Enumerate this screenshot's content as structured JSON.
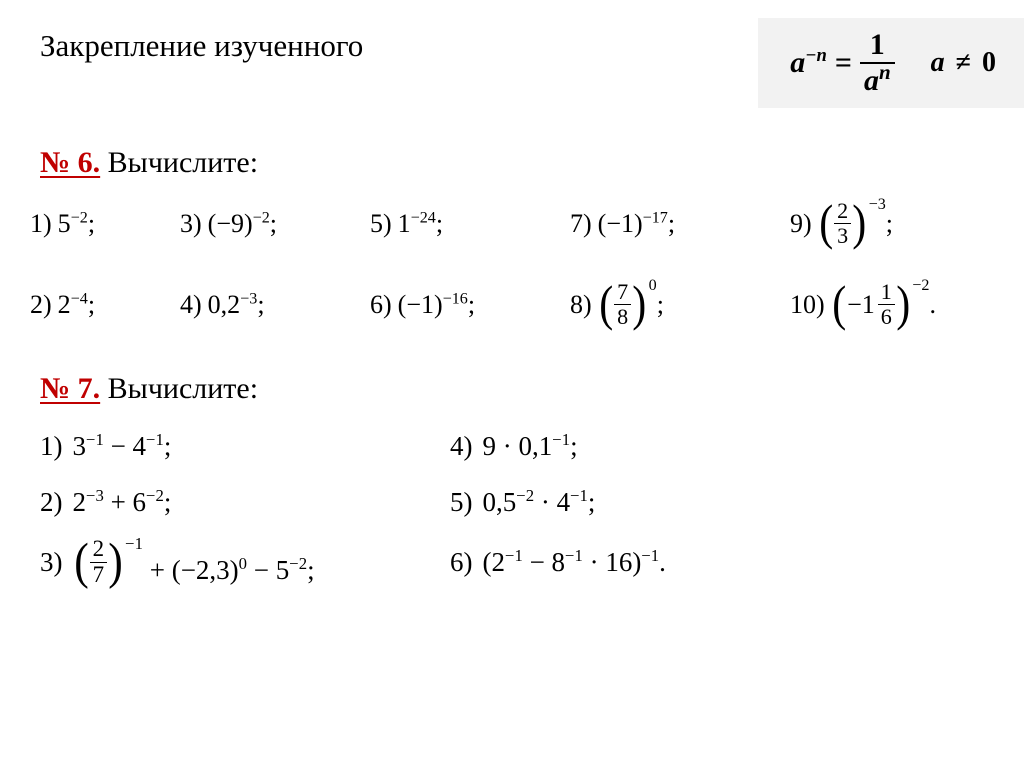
{
  "colors": {
    "background": "#ffffff",
    "text": "#000000",
    "accent_red": "#c00000",
    "formula_box_bg": "#f2f2f2"
  },
  "fonts": {
    "body": "Times New Roman / Georgia serif",
    "title_size_pt": 24,
    "formula_size_pt": 22,
    "task_heading_size_pt": 22,
    "exercise_size_pt": 20
  },
  "title": "Закрепление изученного",
  "formula": {
    "lhs_base": "a",
    "lhs_exp": "−n",
    "eq": "=",
    "rhs_num": "1",
    "rhs_den_base": "a",
    "rhs_den_exp": "n",
    "side_base": "a",
    "side_rel": "≠",
    "side_val": "0"
  },
  "task6": {
    "num": "№ 6.",
    "title": "Вычислите:",
    "items": {
      "r1c1": {
        "lbl": "1)",
        "expr": "5^{-2};",
        "base": "5",
        "exp": "−2",
        "tail": ";"
      },
      "r1c2": {
        "lbl": "3)",
        "expr": "(-9)^{-2};",
        "base": "(−9)",
        "exp": "−2",
        "tail": ";"
      },
      "r1c3": {
        "lbl": "5)",
        "expr": "1^{-24};",
        "base": "1",
        "exp": "−24",
        "tail": ";"
      },
      "r1c4": {
        "lbl": "7)",
        "expr": "(-1)^{-17};",
        "base": "(−1)",
        "exp": "−17",
        "tail": ";"
      },
      "r1c5": {
        "lbl": "9)",
        "expr": "(2/3)^{-3};",
        "type": "bigfrac",
        "num": "2",
        "den": "3",
        "exp": "−3",
        "tail": ";"
      },
      "r2c1": {
        "lbl": "2)",
        "expr": "2^{-4};",
        "base": "2",
        "exp": "−4",
        "tail": ";"
      },
      "r2c2": {
        "lbl": "4)",
        "expr": "0,2^{-3};",
        "base": "0,2",
        "exp": "−3",
        "tail": ";"
      },
      "r2c3": {
        "lbl": "6)",
        "expr": "(-1)^{-16};",
        "base": "(−1)",
        "exp": "−16",
        "tail": ";"
      },
      "r2c4": {
        "lbl": "8)",
        "expr": "(7/8)^{0};",
        "type": "bigfrac",
        "num": "7",
        "den": "8",
        "exp": "0",
        "tail": ";"
      },
      "r2c5": {
        "lbl": "10)",
        "expr": "(-1 1/6)^{-2}.",
        "type": "bigmixed",
        "whole": "−1",
        "num": "1",
        "den": "6",
        "exp": "−2",
        "tail": "."
      }
    }
  },
  "task7": {
    "num": "№ 7.",
    "title": "Вычислите:",
    "items": {
      "l1": {
        "lbl": "1)",
        "expr": "3^{-1} − 4^{-1};",
        "parts": [
          {
            "t": "pow",
            "base": "3",
            "exp": "−1"
          },
          {
            "t": "txt",
            "v": " − "
          },
          {
            "t": "pow",
            "base": "4",
            "exp": "−1"
          },
          {
            "t": "txt",
            "v": ";"
          }
        ]
      },
      "r1": {
        "lbl": "4)",
        "expr": "9 · 0,1^{-1};",
        "parts": [
          {
            "t": "txt",
            "v": "9 · "
          },
          {
            "t": "pow",
            "base": "0,1",
            "exp": "−1"
          },
          {
            "t": "txt",
            "v": ";"
          }
        ]
      },
      "l2": {
        "lbl": "2)",
        "expr": "2^{-3} + 6^{-2};",
        "parts": [
          {
            "t": "pow",
            "base": "2",
            "exp": "−3"
          },
          {
            "t": "txt",
            "v": " + "
          },
          {
            "t": "pow",
            "base": "6",
            "exp": "−2"
          },
          {
            "t": "txt",
            "v": ";"
          }
        ]
      },
      "r2": {
        "lbl": "5)",
        "expr": "0,5^{-2} · 4^{-1};",
        "parts": [
          {
            "t": "pow",
            "base": "0,5",
            "exp": "−2"
          },
          {
            "t": "txt",
            "v": " · "
          },
          {
            "t": "pow",
            "base": "4",
            "exp": "−1"
          },
          {
            "t": "txt",
            "v": ";"
          }
        ]
      },
      "l3": {
        "lbl": "3)",
        "expr": "(2/7)^{-1} + (−2,3)^{0} − 5^{-2};",
        "parts": [
          {
            "t": "bigfrac",
            "num": "2",
            "den": "7",
            "exp": "−1"
          },
          {
            "t": "txt",
            "v": " + "
          },
          {
            "t": "pow",
            "base": "(−2,3)",
            "exp": "0"
          },
          {
            "t": "txt",
            "v": " − "
          },
          {
            "t": "pow",
            "base": "5",
            "exp": "−2"
          },
          {
            "t": "txt",
            "v": ";"
          }
        ]
      },
      "r3": {
        "lbl": "6)",
        "expr": "(2^{-1} − 8^{-1} · 16)^{-1}.",
        "parts": [
          {
            "t": "txt",
            "v": "("
          },
          {
            "t": "pow",
            "base": "2",
            "exp": "−1"
          },
          {
            "t": "txt",
            "v": " − "
          },
          {
            "t": "pow",
            "base": "8",
            "exp": "−1"
          },
          {
            "t": "txt",
            "v": " · 16"
          },
          {
            "t": "powclose",
            "exp": "−1"
          },
          {
            "t": "txt",
            "v": "."
          }
        ]
      }
    }
  }
}
